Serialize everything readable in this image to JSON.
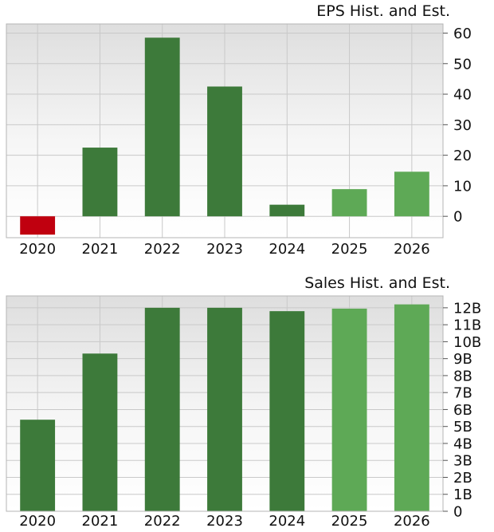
{
  "chart_data": [
    {
      "type": "bar",
      "title": "EPS Hist. and Est.",
      "categories": [
        "2020",
        "2021",
        "2022",
        "2023",
        "2024",
        "2025",
        "2026"
      ],
      "values": [
        -6,
        22.5,
        58.5,
        42.5,
        3.8,
        8.9,
        14.6
      ],
      "estimate_from_index": 5,
      "yticks": [
        0,
        10,
        20,
        30,
        40,
        50,
        60
      ],
      "ytick_labels": [
        "0",
        "10",
        "20",
        "30",
        "40",
        "50",
        "60"
      ],
      "ylim": [
        -7,
        63
      ],
      "axis_position": "right",
      "grid": true,
      "colors": {
        "positive": "#3d7a3a",
        "negative": "#c0000f",
        "estimate": "#5ea956"
      }
    },
    {
      "type": "bar",
      "title": "Sales Hist. and Est.",
      "categories": [
        "2020",
        "2021",
        "2022",
        "2023",
        "2024",
        "2025",
        "2026"
      ],
      "values": [
        5.4,
        9.3,
        12.0,
        12.0,
        11.8,
        11.95,
        12.2
      ],
      "estimate_from_index": 5,
      "yticks": [
        0,
        1,
        2,
        3,
        4,
        5,
        6,
        7,
        8,
        9,
        10,
        11,
        12
      ],
      "ytick_labels": [
        "0",
        "1B",
        "2B",
        "3B",
        "4B",
        "5B",
        "6B",
        "7B",
        "8B",
        "9B",
        "10B",
        "11B",
        "12B"
      ],
      "ylim": [
        0,
        12.7
      ],
      "axis_position": "right",
      "grid": true,
      "colors": {
        "positive": "#3d7a3a",
        "negative": "#c0000f",
        "estimate": "#5ea956"
      }
    }
  ]
}
